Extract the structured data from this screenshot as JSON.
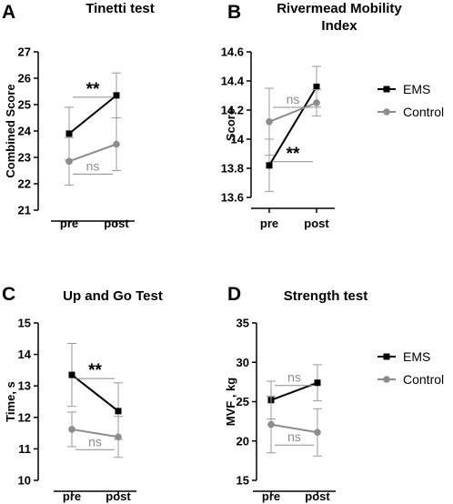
{
  "colors": {
    "ems": "#000000",
    "control": "#8c8c8c",
    "axis": "#000000"
  },
  "legends": [
    {
      "items": [
        {
          "label": "EMS",
          "color": "#000000"
        },
        {
          "label": "Control",
          "color": "#8c8c8c"
        }
      ]
    },
    {
      "items": [
        {
          "label": "EMS",
          "color": "#000000"
        },
        {
          "label": "Control",
          "color": "#8c8c8c"
        }
      ]
    }
  ],
  "chart_data": [
    {
      "panel": "A",
      "type": "line",
      "title": [
        "Tinetti test"
      ],
      "ylabel": "Combined Score",
      "categories": [
        "pre",
        "post"
      ],
      "ylim": [
        21,
        27
      ],
      "yticks": [
        21,
        22,
        23,
        24,
        25,
        26,
        27
      ],
      "series": [
        {
          "name": "EMS",
          "values": [
            23.9,
            25.35
          ],
          "errors": [
            1.0,
            0.85
          ]
        },
        {
          "name": "Control",
          "values": [
            22.85,
            23.5
          ],
          "errors": [
            0.9,
            1.0
          ]
        }
      ],
      "annotations": [
        {
          "text": "**",
          "series": "EMS"
        },
        {
          "text": "ns",
          "series": "Control"
        }
      ]
    },
    {
      "panel": "B",
      "type": "line",
      "title": [
        "Rivermead Mobility",
        "Index"
      ],
      "ylabel": "Score",
      "categories": [
        "pre",
        "post"
      ],
      "ylim": [
        13.6,
        14.6
      ],
      "yticks": [
        13.6,
        13.8,
        14.0,
        14.2,
        14.4,
        14.6
      ],
      "series": [
        {
          "name": "EMS",
          "values": [
            13.82,
            14.36
          ],
          "errors": [
            0.18,
            0.14
          ]
        },
        {
          "name": "Control",
          "values": [
            14.12,
            14.25
          ],
          "errors": [
            0.23,
            0.09
          ]
        }
      ],
      "annotations": [
        {
          "text": "**",
          "series": "EMS"
        },
        {
          "text": "ns",
          "series": "Control"
        }
      ]
    },
    {
      "panel": "C",
      "type": "line",
      "title": [
        "Up and Go Test"
      ],
      "ylabel": "Time, s",
      "categories": [
        "pre",
        "post"
      ],
      "ylim": [
        10,
        15
      ],
      "yticks": [
        10,
        11,
        12,
        13,
        14,
        15
      ],
      "series": [
        {
          "name": "EMS",
          "values": [
            13.35,
            12.2
          ],
          "errors": [
            1.0,
            0.9
          ]
        },
        {
          "name": "Control",
          "values": [
            11.62,
            11.38
          ],
          "errors": [
            0.55,
            0.65
          ]
        }
      ],
      "annotations": [
        {
          "text": "**",
          "series": "EMS"
        },
        {
          "text": "ns",
          "series": "Control"
        }
      ]
    },
    {
      "panel": "D",
      "type": "line",
      "title": [
        "Strength test"
      ],
      "ylabel": "MVF , kg",
      "categories": [
        "pre",
        "post"
      ],
      "ylim": [
        15,
        35
      ],
      "yticks": [
        15,
        20,
        25,
        30,
        35
      ],
      "series": [
        {
          "name": "EMS",
          "values": [
            25.2,
            27.4
          ],
          "errors": [
            2.4,
            2.3
          ]
        },
        {
          "name": "Control",
          "values": [
            22.1,
            21.1
          ],
          "errors": [
            3.6,
            3.0
          ]
        }
      ],
      "annotations": [
        {
          "text": "ns",
          "series": "EMS"
        },
        {
          "text": "ns",
          "series": "Control"
        }
      ]
    }
  ]
}
